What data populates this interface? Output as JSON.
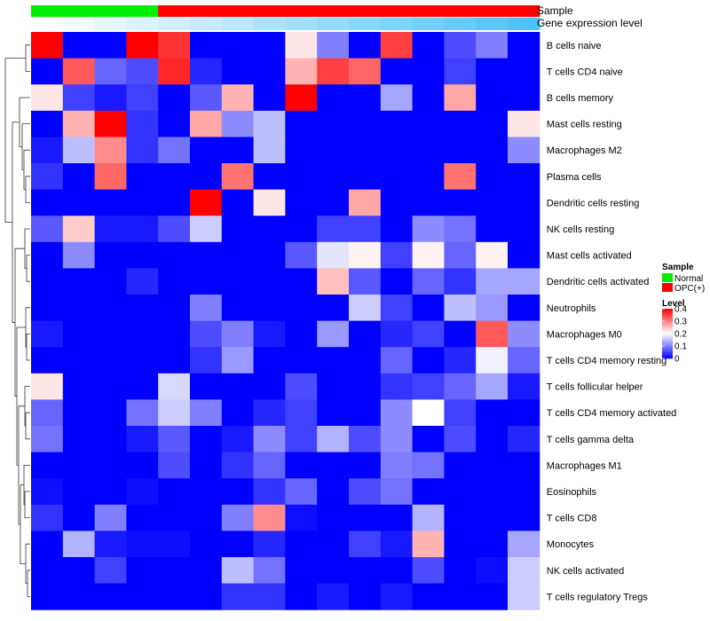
{
  "chart_data": {
    "type": "heatmap",
    "annotation_tracks": {
      "sample": {
        "label": "Sample",
        "values": [
          "Normal",
          "Normal",
          "Normal",
          "Normal",
          "OPC(+)",
          "OPC(+)",
          "OPC(+)",
          "OPC(+)",
          "OPC(+)",
          "OPC(+)",
          "OPC(+)",
          "OPC(+)",
          "OPC(+)",
          "OPC(+)",
          "OPC(+)",
          "OPC(+)"
        ]
      },
      "gene_expression": {
        "label": "Gene expression level",
        "values": [
          0.0,
          0.07,
          0.13,
          0.2,
          0.27,
          0.33,
          0.4,
          0.47,
          0.53,
          0.6,
          0.67,
          0.73,
          0.8,
          0.87,
          0.93,
          1.0
        ]
      }
    },
    "rows": [
      "B cells naive",
      "T cells CD4 naive",
      "B cells memory",
      "Mast cells resting",
      "Macrophages M2",
      "Plasma cells",
      "Dendritic cells resting",
      "NK cells resting",
      "Mast cells activated",
      "Dendritic cells activated",
      "Neutrophils",
      "Macrophages M0",
      "T cells CD4 memory resting",
      "T cells follicular helper",
      "T cells CD4 memory activated",
      "T cells gamma delta",
      "Macrophages M1",
      "Eosinophils",
      "T cells CD8",
      "Monocytes",
      "NK cells activated",
      "T cells regulatory  Tregs"
    ],
    "values": [
      [
        0.4,
        0,
        0,
        0.4,
        0.36,
        0,
        0,
        0,
        0.22,
        0.1,
        0,
        0.35,
        0,
        0.06,
        0.1,
        0
      ],
      [
        0,
        0.33,
        0.08,
        0.06,
        0.37,
        0.03,
        0,
        0,
        0.26,
        0.35,
        0.32,
        0,
        0,
        0.05,
        0,
        0
      ],
      [
        0.22,
        0.05,
        0.02,
        0.05,
        0,
        0.07,
        0.26,
        0,
        0.4,
        0,
        0,
        0.13,
        0,
        0.27,
        0,
        0
      ],
      [
        0,
        0.26,
        0.4,
        0.04,
        0,
        0.27,
        0.11,
        0.15,
        0,
        0,
        0,
        0,
        0,
        0,
        0,
        0.22
      ],
      [
        0.02,
        0.15,
        0.29,
        0.04,
        0.09,
        0,
        0,
        0.15,
        0,
        0,
        0,
        0,
        0,
        0,
        0,
        0.11
      ],
      [
        0.04,
        0,
        0.32,
        0,
        0,
        0,
        0.31,
        0,
        0,
        0,
        0,
        0,
        0,
        0.31,
        0,
        0
      ],
      [
        0,
        0,
        0,
        0,
        0,
        0.4,
        0,
        0.22,
        0,
        0,
        0.27,
        0,
        0,
        0,
        0,
        0
      ],
      [
        0.07,
        0.24,
        0.02,
        0.02,
        0.06,
        0.16,
        0,
        0,
        0,
        0.05,
        0.05,
        0,
        0.11,
        0.09,
        0,
        0
      ],
      [
        0,
        0.11,
        0,
        0,
        0,
        0,
        0,
        0,
        0.07,
        0.18,
        0.21,
        0.05,
        0.21,
        0.08,
        0.21,
        0
      ],
      [
        0,
        0,
        0,
        0.03,
        0,
        0,
        0,
        0,
        0,
        0.25,
        0.07,
        0,
        0.08,
        0.04,
        0.13,
        0.13
      ],
      [
        0,
        0,
        0,
        0,
        0,
        0.1,
        0,
        0,
        0,
        0,
        0.16,
        0.05,
        0,
        0.15,
        0.12,
        0
      ],
      [
        0.02,
        0,
        0,
        0,
        0,
        0.06,
        0.1,
        0.02,
        0,
        0.12,
        0,
        0.03,
        0.05,
        0,
        0.33,
        0.11
      ],
      [
        0,
        0,
        0,
        0,
        0,
        0.04,
        0.12,
        0,
        0,
        0,
        0,
        0.08,
        0,
        0.03,
        0.19,
        0.08
      ],
      [
        0.22,
        0,
        0,
        0,
        0.17,
        0,
        0,
        0,
        0.06,
        0,
        0,
        0.04,
        0.05,
        0.08,
        0.13,
        0.02
      ],
      [
        0.08,
        0,
        0,
        0.09,
        0.16,
        0.1,
        0,
        0.03,
        0.05,
        0,
        0,
        0.11,
        0.2,
        0.05,
        0,
        0
      ],
      [
        0.09,
        0,
        0,
        0.02,
        0.07,
        0,
        0.02,
        0.11,
        0.05,
        0.14,
        0.06,
        0.11,
        0,
        0.06,
        0,
        0.03
      ],
      [
        0,
        0,
        0,
        0,
        0.06,
        0,
        0.04,
        0.08,
        0,
        0,
        0,
        0.1,
        0.09,
        0,
        0,
        0
      ],
      [
        0.01,
        0,
        0,
        0.01,
        0,
        0,
        0,
        0.04,
        0.08,
        0,
        0.06,
        0.09,
        0,
        0,
        0,
        0
      ],
      [
        0.04,
        0,
        0.1,
        0,
        0,
        0,
        0.1,
        0.29,
        0.01,
        0,
        0,
        0,
        0.14,
        0,
        0,
        0
      ],
      [
        0,
        0.14,
        0.02,
        0.01,
        0.01,
        0,
        0,
        0.03,
        0,
        0,
        0.05,
        0.02,
        0.26,
        0,
        0,
        0.13
      ],
      [
        0,
        0,
        0.05,
        0,
        0,
        0,
        0.15,
        0.09,
        0,
        0,
        0,
        0,
        0.06,
        0,
        0.01,
        0.16
      ],
      [
        0,
        0,
        0,
        0,
        0,
        0,
        0.04,
        0.04,
        0,
        0.02,
        0,
        0.02,
        0,
        0,
        0,
        0.16
      ]
    ],
    "legend": {
      "sample_title": "Sample",
      "sample_items": [
        {
          "label": "Normal",
          "color": "#00ee00"
        },
        {
          "label": "OPC(+)",
          "color": "#ff0000"
        }
      ],
      "level_title": "Level",
      "level_ticks": [
        "0.4",
        "0.3",
        "0.2",
        "0.1",
        "0"
      ],
      "level_tick_values": [
        0.4,
        0.3,
        0.2,
        0.1,
        0
      ],
      "placement": "right"
    },
    "colors": {
      "low": "#0000ff",
      "mid": "#ffffff",
      "high": "#ff0000",
      "normal": "#00ee00",
      "opc": "#ff0000",
      "expr_low": "#ffffff",
      "expr_high": "#4fc3f7"
    },
    "scale": {
      "min": 0,
      "max": 0.4
    },
    "row_dendrogram": true
  }
}
